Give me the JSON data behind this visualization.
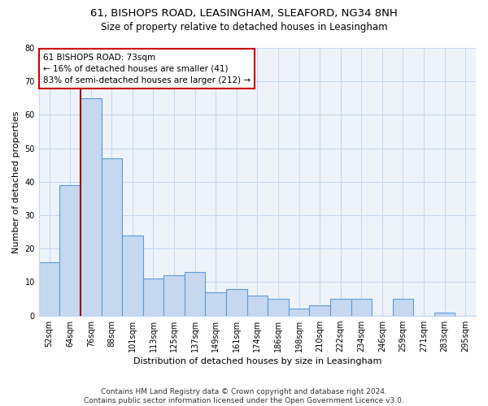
{
  "title_line1": "61, BISHOPS ROAD, LEASINGHAM, SLEAFORD, NG34 8NH",
  "title_line2": "Size of property relative to detached houses in Leasingham",
  "xlabel": "Distribution of detached houses by size in Leasingham",
  "ylabel": "Number of detached properties",
  "categories": [
    "52sqm",
    "64sqm",
    "76sqm",
    "88sqm",
    "101sqm",
    "113sqm",
    "125sqm",
    "137sqm",
    "149sqm",
    "161sqm",
    "174sqm",
    "186sqm",
    "198sqm",
    "210sqm",
    "222sqm",
    "234sqm",
    "246sqm",
    "259sqm",
    "271sqm",
    "283sqm",
    "295sqm"
  ],
  "values": [
    16,
    39,
    65,
    47,
    24,
    11,
    12,
    13,
    7,
    8,
    6,
    5,
    2,
    3,
    5,
    5,
    0,
    5,
    0,
    1,
    0
  ],
  "bar_color": "#c5d8f0",
  "bar_edge_color": "#5b9bd5",
  "annotation_line1": "61 BISHOPS ROAD: 73sqm",
  "annotation_line2": "← 16% of detached houses are smaller (41)",
  "annotation_line3": "83% of semi-detached houses are larger (212) →",
  "annotation_box_color": "white",
  "annotation_box_edge_color": "#cc0000",
  "vline_color": "#990000",
  "vline_x": 1.5,
  "ylim": [
    0,
    80
  ],
  "yticks": [
    0,
    10,
    20,
    30,
    40,
    50,
    60,
    70,
    80
  ],
  "grid_color": "#c8d8ee",
  "plot_bg_color": "#eef3fa",
  "background_color": "white",
  "footer_line1": "Contains HM Land Registry data © Crown copyright and database right 2024.",
  "footer_line2": "Contains public sector information licensed under the Open Government Licence v3.0.",
  "title_fontsize": 9.5,
  "subtitle_fontsize": 8.5,
  "axis_label_fontsize": 8,
  "tick_fontsize": 7,
  "annotation_fontsize": 7.5,
  "footer_fontsize": 6.5
}
